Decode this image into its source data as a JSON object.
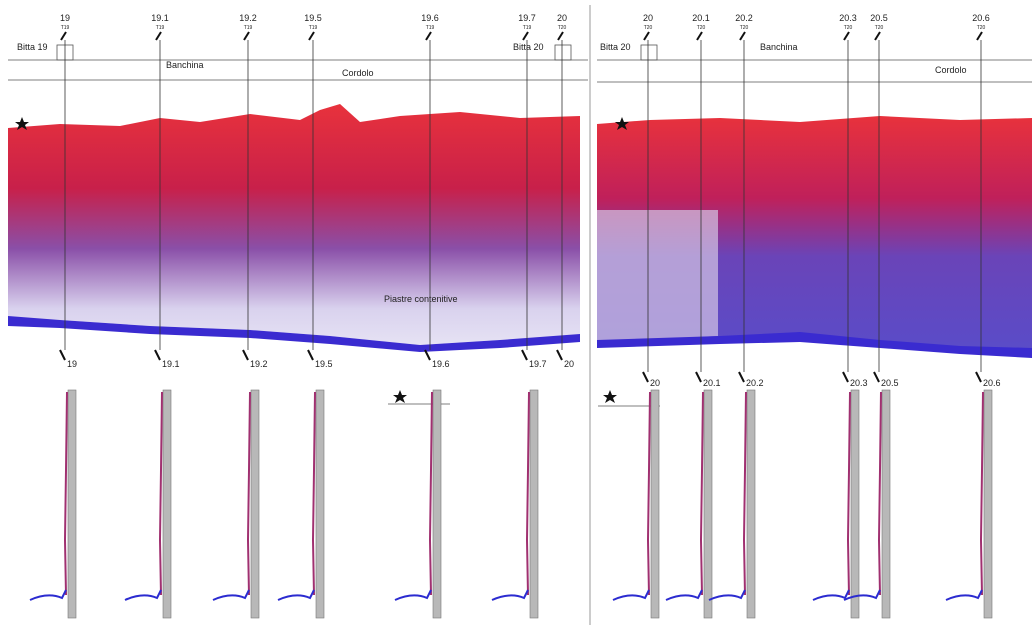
{
  "left_panel": {
    "bitta_start": "Bitta 19",
    "bitta_end": "Bitta 20",
    "banchina": "Banchina",
    "cordolo": "Cordolo",
    "plates": "Piastre contenitive",
    "sections": [
      {
        "label": "19",
        "sub": "T19"
      },
      {
        "label": "19.1",
        "sub": "T19"
      },
      {
        "label": "19.2",
        "sub": "T19"
      },
      {
        "label": "19.5",
        "sub": "T19"
      },
      {
        "label": "19.6",
        "sub": "T19"
      },
      {
        "label": "19.7",
        "sub": "T19"
      },
      {
        "label": "20",
        "sub": "T20"
      }
    ]
  },
  "right_panel": {
    "bitta_start": "Bitta 20",
    "banchina": "Banchina",
    "cordolo": "Cordolo",
    "sections": [
      {
        "label": "20",
        "sub": "T20"
      },
      {
        "label": "20.1",
        "sub": "T20"
      },
      {
        "label": "20.2",
        "sub": "T20"
      },
      {
        "label": "20.3",
        "sub": "T20"
      },
      {
        "label": "20.5",
        "sub": "T20"
      },
      {
        "label": "20.6",
        "sub": "T20"
      }
    ]
  }
}
